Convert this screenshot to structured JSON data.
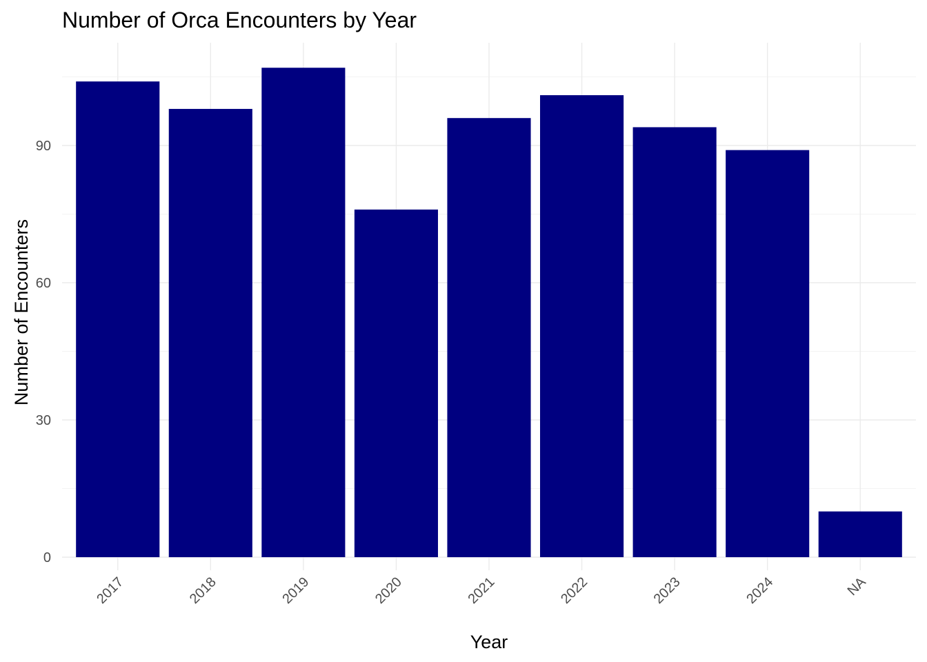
{
  "chart_data": {
    "type": "bar",
    "title": "Number of Orca Encounters by Year",
    "xlabel": "Year",
    "ylabel": "Number of Encounters",
    "categories": [
      "2017",
      "2018",
      "2019",
      "2020",
      "2021",
      "2022",
      "2023",
      "2024",
      "NA"
    ],
    "values": [
      104,
      98,
      107,
      76,
      96,
      101,
      94,
      89,
      10
    ],
    "ylim": [
      0,
      112
    ],
    "yticks": [
      0,
      30,
      60,
      90
    ],
    "bar_color": "#000080",
    "grid": true,
    "legend": "none",
    "x_tick_rotation_deg": 45
  }
}
